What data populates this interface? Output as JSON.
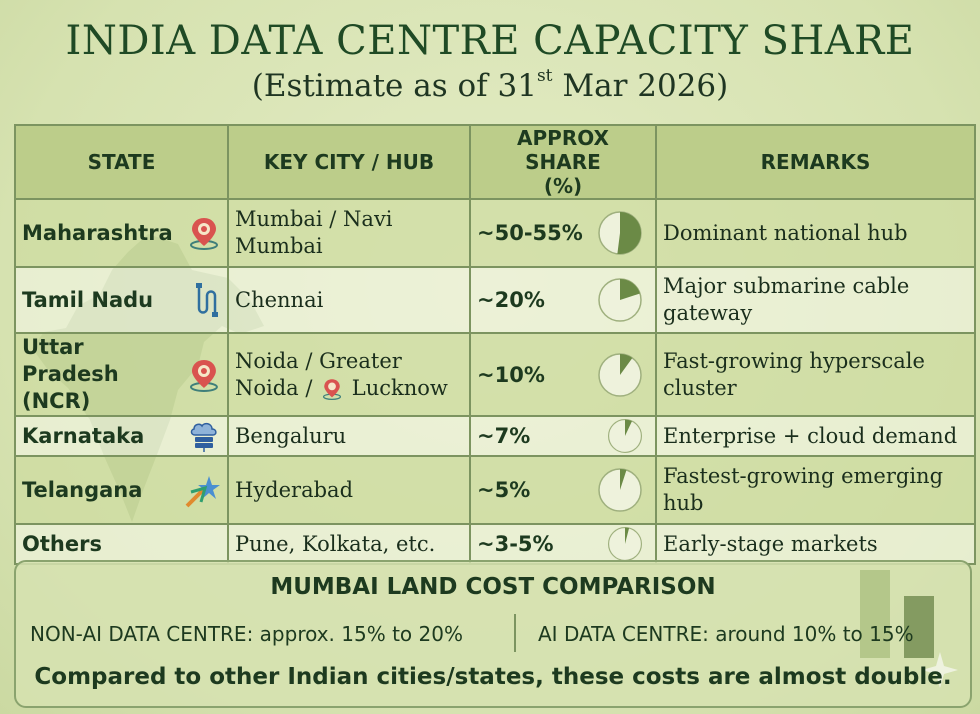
{
  "title": "INDIA DATA CENTRE CAPACITY SHARE",
  "subtitle": {
    "before": "(Estimate as of 31",
    "sup": "st",
    "after": " Mar 2026)"
  },
  "table": {
    "headers": {
      "state": "STATE",
      "city": "KEY CITY / HUB",
      "share_line1": "APPROX SHARE",
      "share_line2": "(%)",
      "remarks": "REMARKS"
    },
    "rows": [
      {
        "state_lines": [
          "Maharashtra"
        ],
        "state_icon": "location-pin-icon",
        "city_lines": [
          "Mumbai / Navi",
          "Mumbai"
        ],
        "share_text": "~50-55%",
        "pie_fraction": 0.52,
        "remark_lines": [
          "Dominant national hub"
        ]
      },
      {
        "state_lines": [
          "Tamil Nadu"
        ],
        "state_icon": "cable-icon",
        "city_lines": [
          "Chennai"
        ],
        "share_text": "~20%",
        "pie_fraction": 0.2,
        "remark_lines": [
          "Major submarine cable",
          "gateway"
        ]
      },
      {
        "state_lines": [
          "Uttar Pradesh",
          "(NCR)"
        ],
        "state_icon": "location-pin-icon",
        "city_lines": [
          "Noida / Greater"
        ],
        "city_line2_before": "Noida / ",
        "city_line2_icon": "location-pin-icon",
        "city_line2_after": " Lucknow",
        "share_text": "~10%",
        "pie_fraction": 0.1,
        "remark_lines": [
          "Fast-growing hyperscale",
          "cluster"
        ]
      },
      {
        "state_lines": [
          "Karnataka"
        ],
        "state_icon": "cloud-server-icon",
        "city_lines": [
          "Bengaluru"
        ],
        "share_text": "~7%",
        "pie_fraction": 0.07,
        "remark_lines": [
          "Enterprise + cloud demand"
        ]
      },
      {
        "state_lines": [
          "Telangana"
        ],
        "state_icon": "star-arrow-icon",
        "city_lines": [
          "Hyderabad"
        ],
        "share_text": "~5%",
        "pie_fraction": 0.05,
        "remark_lines": [
          "Fastest-growing emerging",
          "hub"
        ]
      },
      {
        "state_lines": [
          "Others"
        ],
        "state_icon": "",
        "city_lines": [
          "Pune, Kolkata, etc."
        ],
        "share_text": "~3-5%",
        "pie_fraction": 0.04,
        "remark_lines": [
          "Early-stage markets"
        ]
      }
    ]
  },
  "comparison": {
    "title": "MUMBAI LAND COST COMPARISON",
    "non_ai": "NON-AI DATA CENTRE: approx. 15% to 20%",
    "ai": "AI DATA CENTRE: around 10% to 15%",
    "note": "Compared to other Indian cities/states, these costs are almost double."
  },
  "colors": {
    "header_bg": "#bccd8a",
    "border": "#7c9460",
    "pie_fill": "#6b8a46",
    "pie_bg": "#eef2dc",
    "title": "#1f4a25"
  }
}
